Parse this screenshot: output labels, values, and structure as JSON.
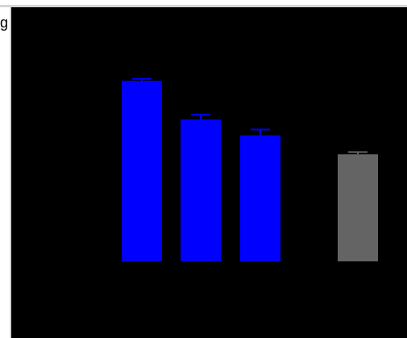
{
  "fragment_label": "g",
  "colors": {
    "background": "#000000",
    "primary_bar": "#0000ff",
    "reference_bar": "#646464",
    "frame": "#d4d4d4"
  },
  "chart_data": {
    "type": "bar",
    "title": "",
    "xlabel": "",
    "ylabel": "",
    "ylim": [
      0,
      1
    ],
    "grid": false,
    "legend": "none",
    "series": [
      {
        "values": [
          0.8,
          0.628,
          0.558,
          0.474
        ],
        "errors": [
          0.008,
          0.022,
          0.026,
          0.01
        ],
        "colors": [
          "#0000ff",
          "#0000ff",
          "#0000ff",
          "#646464"
        ]
      }
    ]
  }
}
